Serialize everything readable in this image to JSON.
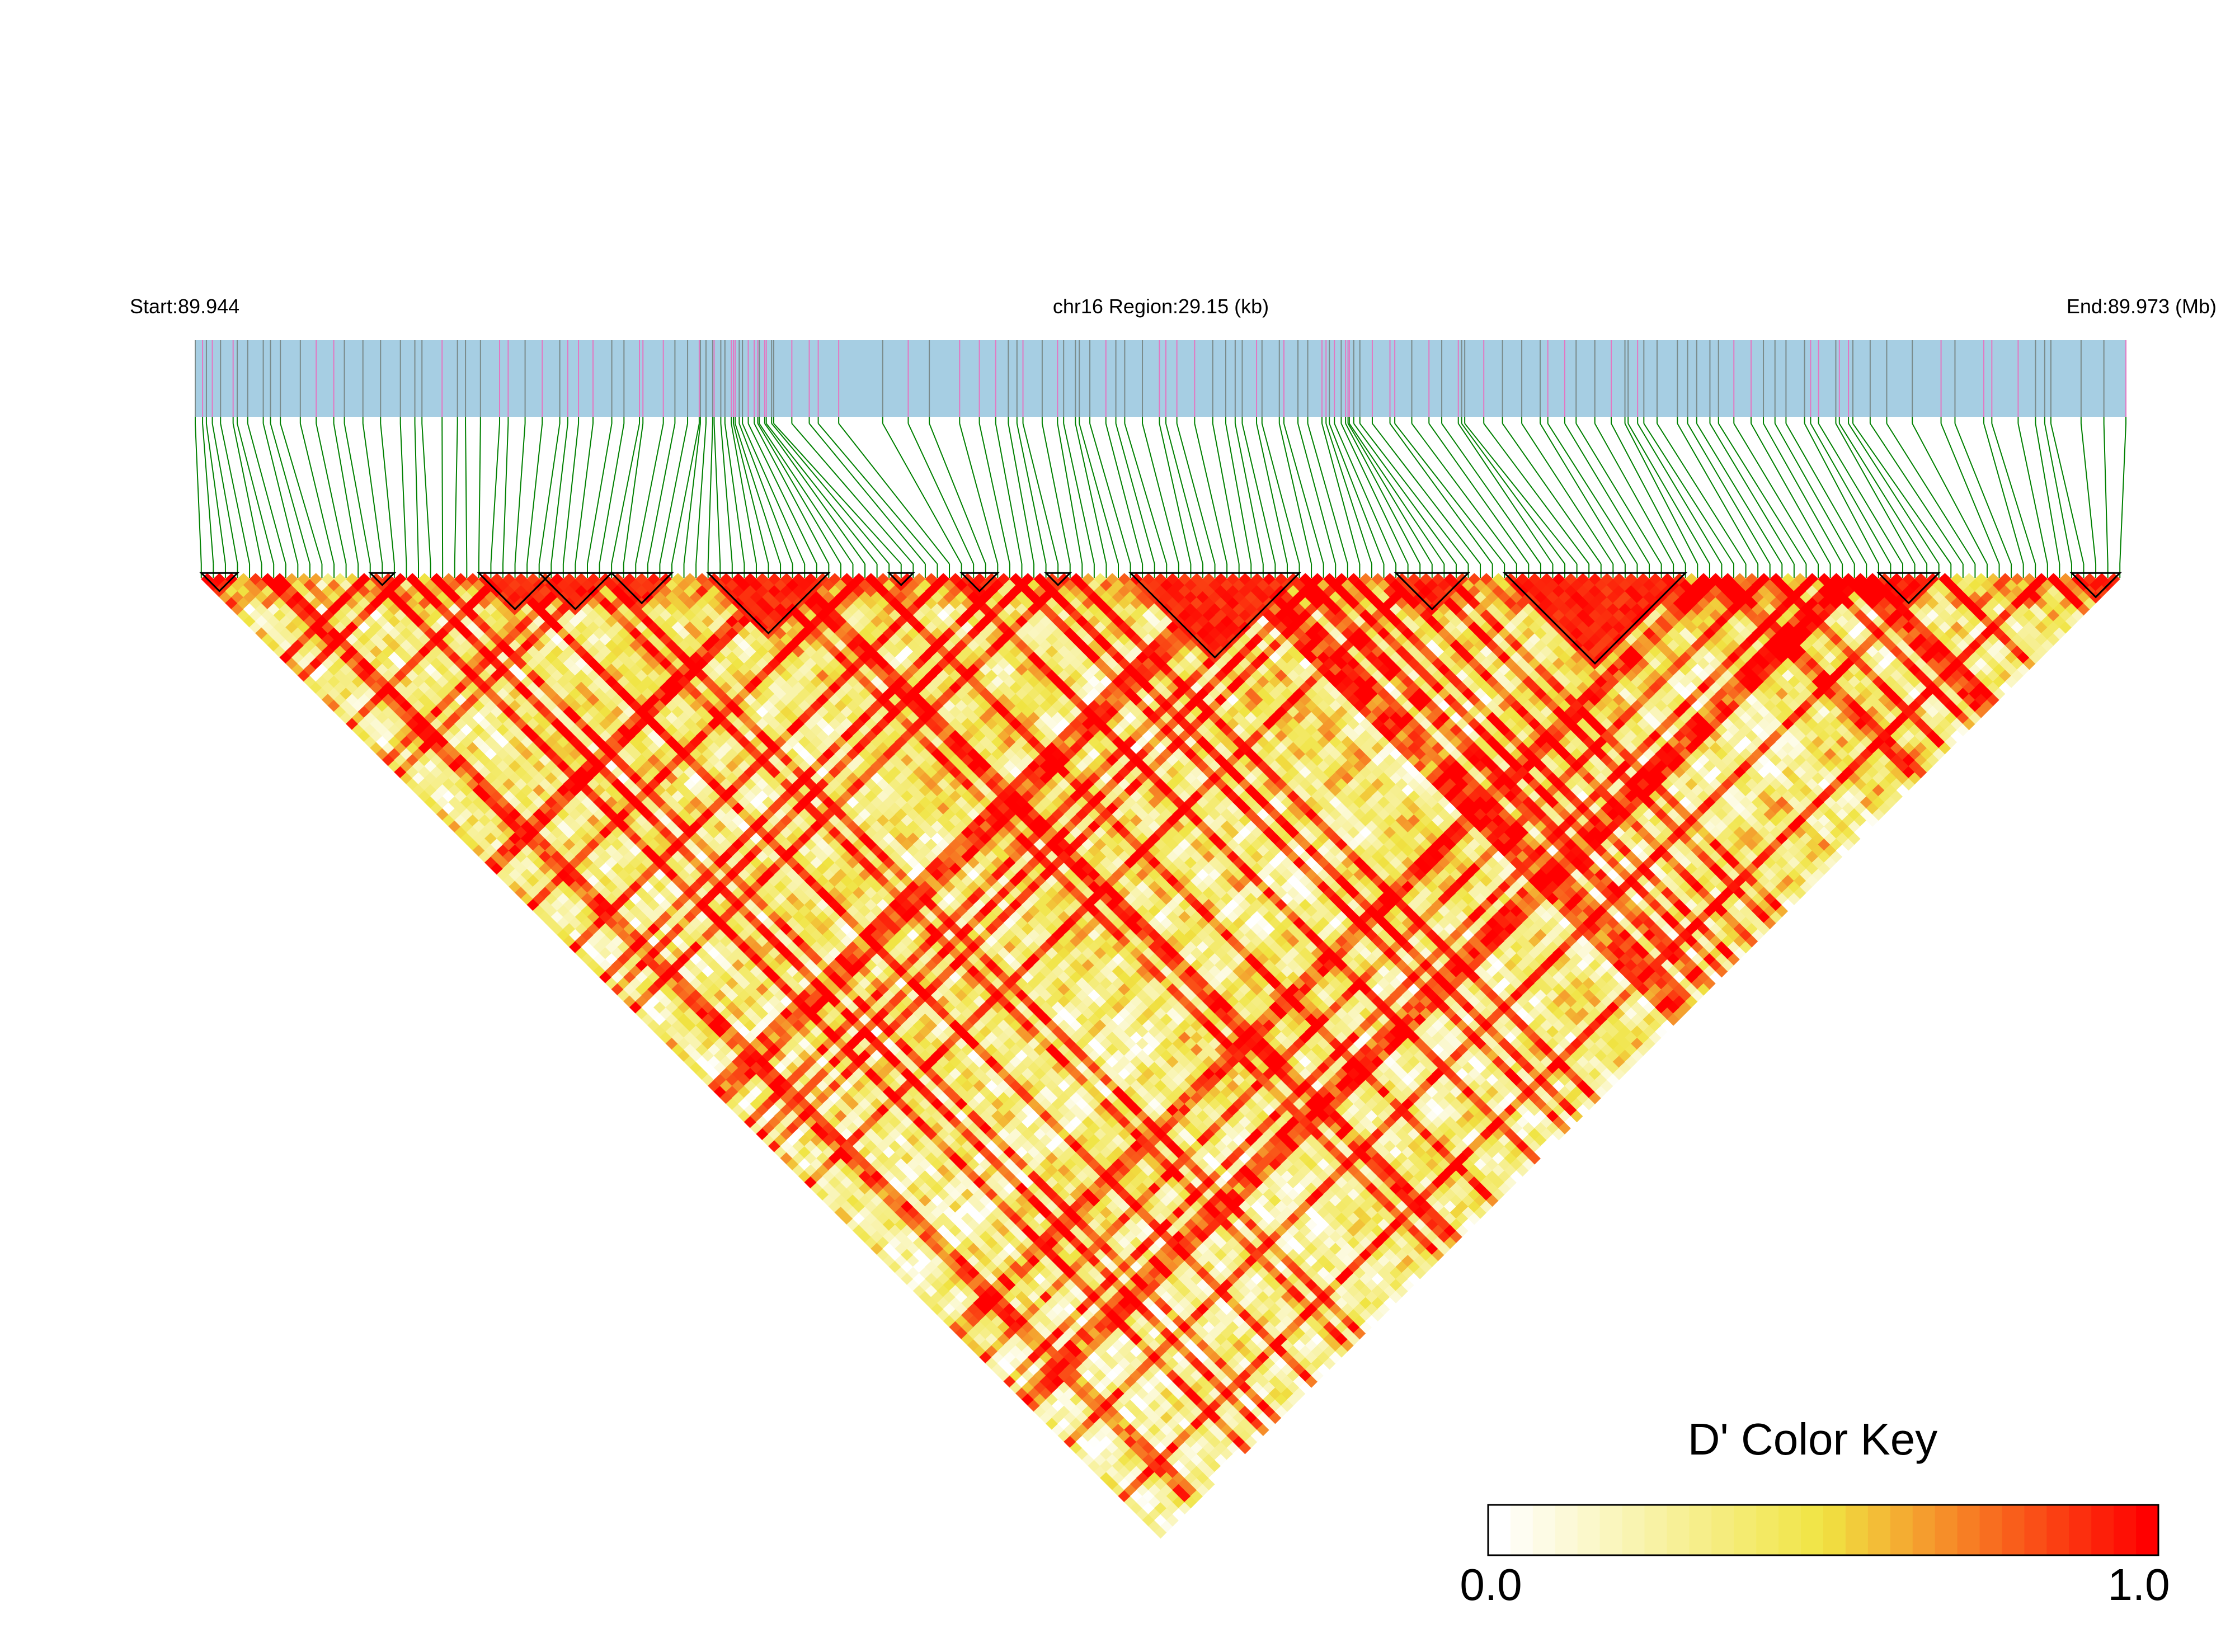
{
  "header": {
    "start_label": "Start:89.944",
    "region_label": "chr16 Region:29.15 (kb)",
    "end_label": "End:89.973 (Mb)"
  },
  "chart_data": {
    "type": "heatmap",
    "plot_kind": "LD heatmap (D')",
    "chromosome": "chr16",
    "region_kb": 29.15,
    "start_mb": 89.944,
    "end_mb": 89.973,
    "snp_count": 160,
    "colormap": {
      "low": "#ffffff",
      "mid": "#f0e442",
      "high": "#ff0000"
    },
    "color_key": {
      "title": "D' Color Key",
      "min_label": "0.0",
      "max_label": "1.0",
      "min": 0.0,
      "max": 1.0,
      "segments": 30
    },
    "ld_blocks": [
      {
        "from_snp": 0,
        "to_snp": 3
      },
      {
        "from_snp": 14,
        "to_snp": 16
      },
      {
        "from_snp": 23,
        "to_snp": 29
      },
      {
        "from_snp": 28,
        "to_snp": 34
      },
      {
        "from_snp": 34,
        "to_snp": 39
      },
      {
        "from_snp": 42,
        "to_snp": 52
      },
      {
        "from_snp": 57,
        "to_snp": 59
      },
      {
        "from_snp": 63,
        "to_snp": 66
      },
      {
        "from_snp": 70,
        "to_snp": 72
      },
      {
        "from_snp": 77,
        "to_snp": 91
      },
      {
        "from_snp": 99,
        "to_snp": 105
      },
      {
        "from_snp": 108,
        "to_snp": 123
      },
      {
        "from_snp": 139,
        "to_snp": 144
      },
      {
        "from_snp": 155,
        "to_snp": 159
      }
    ],
    "track_colors": {
      "bar": "#a6cee3",
      "snp_tick": "#7a8b8b",
      "snp_tick_highlight": "#e377c2",
      "connector": "#008000",
      "block_outline": "#000000"
    }
  }
}
